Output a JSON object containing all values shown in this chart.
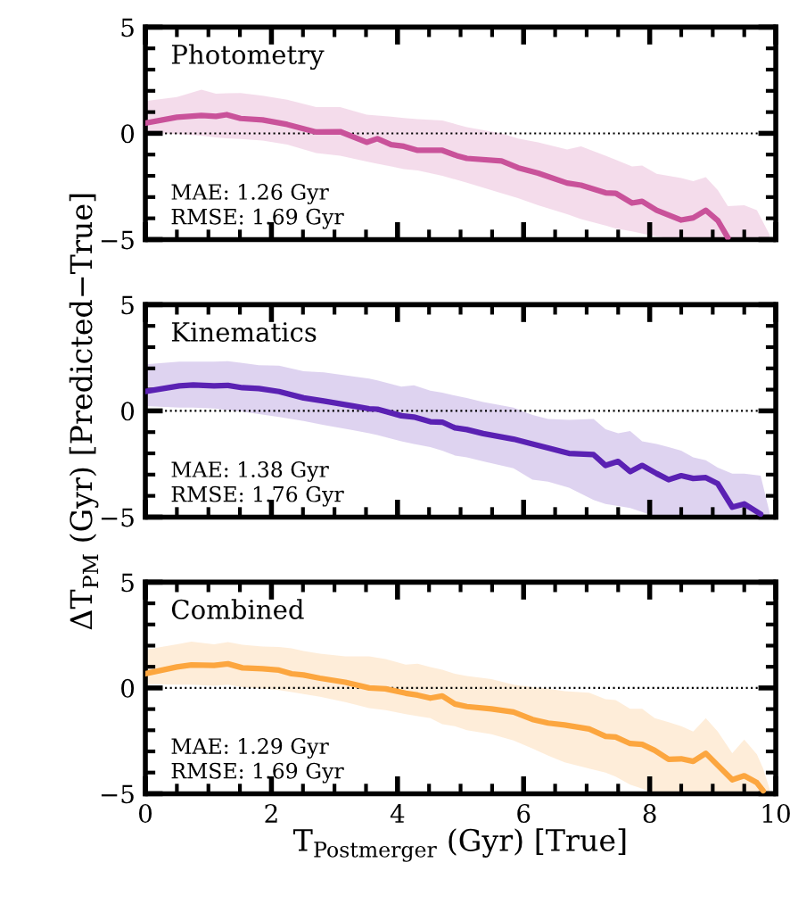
{
  "chart_data": [
    {
      "type": "line",
      "title": "Photometry",
      "annotations": [
        "MAE: 1.26 Gyr\nRMSE: 1.69 Gyr"
      ],
      "xlim": [
        0,
        10
      ],
      "ylim": [
        -5,
        5
      ],
      "xticks": [
        0,
        2,
        4,
        6,
        8,
        10
      ],
      "yticks": [
        -5,
        0,
        5
      ],
      "tick_labels": "y",
      "x": [
        0.0,
        0.5,
        0.89,
        1.12,
        1.29,
        1.51,
        1.86,
        2.25,
        2.71,
        3.09,
        3.51,
        3.68,
        3.9,
        4.1,
        4.32,
        4.71,
        4.94,
        5.1,
        5.65,
        5.91,
        6.23,
        6.69,
        6.91,
        7.3,
        7.46,
        7.72,
        7.88,
        8.11,
        8.5,
        8.69,
        8.89,
        9.08,
        9.24,
        9.5,
        9.7,
        9.9
      ],
      "ref_lines": [
        {
          "axis": "y",
          "value": 0,
          "color": "#000000",
          "line_style": "dotted"
        }
      ],
      "series": [
        {
          "color": "#c9529a",
          "values": [
            0.48,
            0.76,
            0.84,
            0.8,
            0.88,
            0.7,
            0.63,
            0.42,
            0.06,
            0.08,
            -0.42,
            -0.25,
            -0.53,
            -0.61,
            -0.8,
            -0.8,
            -1.05,
            -1.18,
            -1.3,
            -1.62,
            -1.87,
            -2.34,
            -2.44,
            -2.8,
            -2.82,
            -3.28,
            -3.2,
            -3.62,
            -4.08,
            -3.98,
            -3.62,
            -4.1,
            -4.91,
            null,
            null,
            null
          ],
          "upper": [
            1.52,
            1.71,
            2.06,
            1.87,
            1.89,
            1.9,
            1.77,
            1.58,
            1.24,
            1.24,
            0.88,
            0.84,
            0.78,
            0.72,
            0.67,
            0.61,
            0.42,
            0.29,
            0.0,
            -0.25,
            -0.42,
            -0.76,
            -0.61,
            -1.05,
            -1.24,
            -1.56,
            -1.52,
            -1.9,
            -2.1,
            -2.25,
            -2.06,
            -2.67,
            -3.43,
            -3.39,
            -3.62,
            -4.76
          ],
          "lower": [
            0.04,
            -0.04,
            -0.11,
            -0.19,
            -0.23,
            -0.27,
            -0.34,
            -0.53,
            -0.93,
            -1.05,
            -1.33,
            -1.43,
            -1.56,
            -1.68,
            -1.75,
            -2.0,
            -2.19,
            -2.32,
            -2.82,
            -3.05,
            -3.39,
            -3.81,
            -4.04,
            -4.34,
            -4.48,
            -4.61,
            -4.72,
            -4.86,
            -5,
            -5,
            -5,
            -5,
            -5,
            -5,
            -5,
            -5
          ]
        }
      ]
    },
    {
      "type": "line",
      "title": "Kinematics",
      "ylabel": "ΔT$_{PM}$ (Gyr) [Predicted−True]",
      "annotations": [
        "MAE: 1.38 Gyr\nRMSE: 1.76 Gyr"
      ],
      "xlim": [
        0,
        10
      ],
      "ylim": [
        -5,
        5
      ],
      "xticks": [
        0,
        2,
        4,
        6,
        8,
        10
      ],
      "yticks": [
        -5,
        0,
        5
      ],
      "tick_labels": "y",
      "x": [
        0.0,
        0.54,
        0.76,
        1.09,
        1.31,
        1.54,
        1.8,
        2.12,
        2.51,
        2.83,
        3.29,
        3.55,
        3.68,
        4.06,
        4.26,
        4.52,
        4.71,
        4.91,
        5.1,
        5.36,
        5.84,
        6.14,
        6.39,
        6.72,
        7.11,
        7.3,
        7.5,
        7.69,
        7.88,
        8.11,
        8.3,
        8.5,
        8.69,
        8.89,
        9.08,
        9.31,
        9.5,
        9.76,
        9.9
      ],
      "ref_lines": [
        {
          "axis": "y",
          "value": 0,
          "color": "#000000",
          "line_style": "dotted"
        }
      ],
      "series": [
        {
          "color": "#5a21b3",
          "values": [
            0.91,
            1.18,
            1.22,
            1.18,
            1.2,
            1.09,
            1.05,
            0.91,
            0.61,
            0.46,
            0.23,
            0.1,
            0.08,
            -0.23,
            -0.29,
            -0.51,
            -0.53,
            -0.8,
            -0.88,
            -1.07,
            -1.33,
            -1.56,
            -1.75,
            -2.0,
            -2.06,
            -2.57,
            -2.38,
            -2.86,
            -2.57,
            -2.95,
            -3.24,
            -3.05,
            -3.18,
            -3.14,
            -3.43,
            -4.53,
            -4.38,
            -4.86,
            null
          ],
          "upper": [
            2.19,
            2.32,
            2.32,
            2.32,
            2.34,
            2.25,
            2.15,
            2.13,
            1.87,
            1.81,
            1.62,
            1.52,
            1.43,
            1.14,
            1.2,
            0.95,
            0.86,
            0.72,
            0.61,
            0.42,
            0.15,
            -0.19,
            -0.38,
            -0.42,
            -0.38,
            -0.86,
            -1.05,
            -0.95,
            -1.43,
            -1.56,
            -1.71,
            -1.87,
            -2.19,
            -2.32,
            -2.67,
            -2.95,
            -2.95,
            -3.05,
            -4.76
          ],
          "lower": [
            0.23,
            0.15,
            0.15,
            0.11,
            0.04,
            -0.04,
            -0.15,
            -0.29,
            -0.48,
            -0.67,
            -0.91,
            -1.05,
            -1.14,
            -1.43,
            -1.56,
            -1.71,
            -1.87,
            -2.1,
            -2.19,
            -2.38,
            -2.7,
            -3.24,
            -3.33,
            -3.62,
            -4.19,
            -4.38,
            -4.48,
            -4.57,
            -4.76,
            -5,
            -5,
            -5,
            -5,
            -5,
            -5,
            -5,
            -5,
            -5,
            -5
          ]
        }
      ]
    },
    {
      "type": "line",
      "title": "Combined",
      "xlabel": "T$_{Postmerger}$ (Gyr) [True]",
      "annotations": [
        "MAE: 1.29 Gyr\nRMSE: 1.69 Gyr"
      ],
      "xlim": [
        0,
        10
      ],
      "ylim": [
        -5,
        5
      ],
      "xticks": [
        0,
        2,
        4,
        6,
        8,
        10
      ],
      "yticks": [
        -5,
        0,
        5
      ],
      "x": [
        0.0,
        0.5,
        0.73,
        1.09,
        1.31,
        1.54,
        1.86,
        2.12,
        2.32,
        2.51,
        2.77,
        3.17,
        3.55,
        3.81,
        4.13,
        4.32,
        4.52,
        4.71,
        4.91,
        5.1,
        5.49,
        5.84,
        6.14,
        6.39,
        6.65,
        7.04,
        7.3,
        7.46,
        7.69,
        7.88,
        8.08,
        8.3,
        8.5,
        8.69,
        8.89,
        9.08,
        9.31,
        9.5,
        9.7,
        9.8,
        9.9
      ],
      "ref_lines": [
        {
          "axis": "y",
          "value": 0,
          "color": "#000000",
          "line_style": "dotted"
        }
      ],
      "series": [
        {
          "color": "#fca63f",
          "values": [
            0.67,
            0.99,
            1.09,
            1.07,
            1.14,
            0.95,
            0.91,
            0.84,
            0.67,
            0.61,
            0.46,
            0.27,
            0.0,
            -0.04,
            -0.25,
            -0.34,
            -0.48,
            -0.38,
            -0.76,
            -0.88,
            -0.99,
            -1.14,
            -1.49,
            -1.66,
            -1.75,
            -1.94,
            -2.29,
            -2.32,
            -2.63,
            -2.67,
            -2.95,
            -3.37,
            -3.35,
            -3.47,
            -3.09,
            -3.66,
            -4.34,
            -4.15,
            -4.48,
            -4.86,
            null
          ],
          "upper": [
            1.81,
            2.06,
            2.19,
            2.06,
            2.17,
            2.04,
            1.96,
            1.94,
            1.87,
            1.75,
            1.62,
            1.49,
            1.49,
            1.37,
            1.1,
            1.14,
            0.99,
            0.86,
            0.67,
            0.57,
            0.42,
            0.15,
            0.04,
            -0.04,
            -0.15,
            -0.23,
            -0.53,
            -0.57,
            -0.99,
            -0.99,
            -1.43,
            -1.62,
            -1.81,
            -2.06,
            -1.43,
            -2.06,
            -3.08,
            -2.44,
            -3.14,
            -3.81,
            -4.76
          ],
          "lower": [
            0.19,
            0.15,
            0.15,
            0.1,
            0.15,
            0.04,
            -0.04,
            -0.1,
            -0.19,
            -0.29,
            -0.42,
            -0.67,
            -0.95,
            -1.05,
            -1.24,
            -1.33,
            -1.43,
            -1.71,
            -1.81,
            -2.0,
            -2.19,
            -2.48,
            -2.86,
            -3.2,
            -3.52,
            -3.81,
            -4.0,
            -4.19,
            -4.57,
            -4.76,
            -5,
            -5,
            -5,
            -5,
            -5,
            -5,
            -5,
            -5,
            -5,
            -5,
            -5
          ]
        }
      ]
    }
  ]
}
